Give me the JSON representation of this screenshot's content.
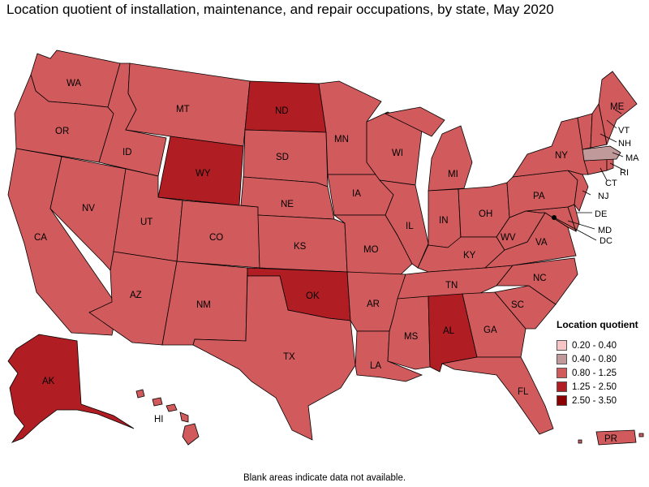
{
  "title": "Location quotient of installation, maintenance, and repair occupations, by state, May 2020",
  "footnote": "Blank areas indicate data not available.",
  "legend": {
    "title": "Location quotient",
    "items": [
      {
        "label": "0.20 - 0.40",
        "color": "#f7c5c5"
      },
      {
        "label": "0.40 - 0.80",
        "color": "#c0999a"
      },
      {
        "label": "0.80 - 1.25",
        "color": "#d05a5c"
      },
      {
        "label": "1.25 - 2.50",
        "color": "#b01e24"
      },
      {
        "label": "2.50 - 3.50",
        "color": "#8a0000"
      }
    ]
  },
  "states": {
    "WA": {
      "label": "WA",
      "class": "0.80 - 1.25"
    },
    "OR": {
      "label": "OR",
      "class": "0.80 - 1.25"
    },
    "CA": {
      "label": "CA",
      "class": "0.80 - 1.25"
    },
    "ID": {
      "label": "ID",
      "class": "0.80 - 1.25"
    },
    "NV": {
      "label": "NV",
      "class": "0.80 - 1.25"
    },
    "MT": {
      "label": "MT",
      "class": "0.80 - 1.25"
    },
    "WY": {
      "label": "WY",
      "class": "1.25 - 2.50"
    },
    "UT": {
      "label": "UT",
      "class": "0.80 - 1.25"
    },
    "AZ": {
      "label": "AZ",
      "class": "0.80 - 1.25"
    },
    "CO": {
      "label": "CO",
      "class": "0.80 - 1.25"
    },
    "NM": {
      "label": "NM",
      "class": "0.80 - 1.25"
    },
    "ND": {
      "label": "ND",
      "class": "1.25 - 2.50"
    },
    "SD": {
      "label": "SD",
      "class": "0.80 - 1.25"
    },
    "NE": {
      "label": "NE",
      "class": "0.80 - 1.25"
    },
    "KS": {
      "label": "KS",
      "class": "0.80 - 1.25"
    },
    "OK": {
      "label": "OK",
      "class": "1.25 - 2.50"
    },
    "TX": {
      "label": "TX",
      "class": "0.80 - 1.25"
    },
    "MN": {
      "label": "MN",
      "class": "0.80 - 1.25"
    },
    "IA": {
      "label": "IA",
      "class": "0.80 - 1.25"
    },
    "MO": {
      "label": "MO",
      "class": "0.80 - 1.25"
    },
    "AR": {
      "label": "AR",
      "class": "0.80 - 1.25"
    },
    "LA": {
      "label": "LA",
      "class": "0.80 - 1.25"
    },
    "WI": {
      "label": "WI",
      "class": "0.80 - 1.25"
    },
    "IL": {
      "label": "IL",
      "class": "0.80 - 1.25"
    },
    "MI": {
      "label": "MI",
      "class": "0.80 - 1.25"
    },
    "IN": {
      "label": "IN",
      "class": "0.80 - 1.25"
    },
    "OH": {
      "label": "OH",
      "class": "0.80 - 1.25"
    },
    "KY": {
      "label": "KY",
      "class": "0.80 - 1.25"
    },
    "TN": {
      "label": "TN",
      "class": "0.80 - 1.25"
    },
    "MS": {
      "label": "MS",
      "class": "0.80 - 1.25"
    },
    "AL": {
      "label": "AL",
      "class": "1.25 - 2.50"
    },
    "GA": {
      "label": "GA",
      "class": "0.80 - 1.25"
    },
    "FL": {
      "label": "FL",
      "class": "0.80 - 1.25"
    },
    "SC": {
      "label": "SC",
      "class": "0.80 - 1.25"
    },
    "NC": {
      "label": "NC",
      "class": "0.80 - 1.25"
    },
    "VA": {
      "label": "VA",
      "class": "0.80 - 1.25"
    },
    "WV": {
      "label": "WV",
      "class": "0.80 - 1.25"
    },
    "PA": {
      "label": "PA",
      "class": "0.80 - 1.25"
    },
    "NY": {
      "label": "NY",
      "class": "0.80 - 1.25"
    },
    "VT": {
      "label": "VT",
      "class": "0.80 - 1.25"
    },
    "NH": {
      "label": "NH",
      "class": "0.80 - 1.25"
    },
    "ME": {
      "label": "ME",
      "class": "0.80 - 1.25"
    },
    "MA": {
      "label": "MA",
      "class": "0.40 - 0.80"
    },
    "RI": {
      "label": "RI",
      "class": "0.80 - 1.25"
    },
    "CT": {
      "label": "CT",
      "class": "0.80 - 1.25"
    },
    "NJ": {
      "label": "NJ",
      "class": "0.80 - 1.25"
    },
    "DE": {
      "label": "DE",
      "class": "0.80 - 1.25"
    },
    "MD": {
      "label": "MD",
      "class": "0.80 - 1.25"
    },
    "DC": {
      "label": "DC",
      "class": "0.80 - 1.25"
    },
    "AK": {
      "label": "AK",
      "class": "1.25 - 2.50"
    },
    "HI": {
      "label": "HI",
      "class": "0.80 - 1.25"
    },
    "PR": {
      "label": "PR",
      "class": "0.80 - 1.25"
    }
  }
}
